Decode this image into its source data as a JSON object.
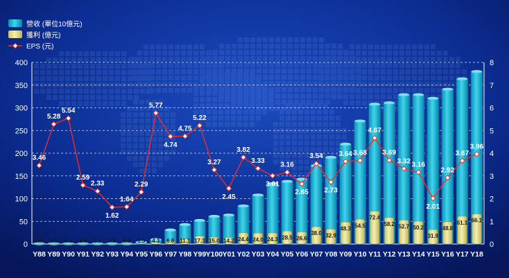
{
  "legend": {
    "revenue": "營收 (單位10億元)",
    "profit": "獲利 (億元)",
    "eps": "EPS (元)"
  },
  "colors": {
    "background": "#0b2a8c",
    "revenue": "#1fb8d6",
    "profit": "#e6df8c",
    "eps_line": "#e8302a"
  },
  "chart_data": {
    "type": "bar",
    "categories": [
      "Y88",
      "Y89",
      "Y90",
      "Y91",
      "Y92",
      "Y93",
      "Y94",
      "Y95",
      "Y96",
      "Y97",
      "Y98",
      "Y99",
      "Y100",
      "Y01",
      "Y02",
      "Y03",
      "Y04",
      "Y05",
      "Y06",
      "Y07",
      "Y08",
      "Y09",
      "Y10",
      "Y11",
      "Y12",
      "Y13",
      "Y14",
      "Y15",
      "Y16",
      "Y17",
      "Y18"
    ],
    "series": [
      {
        "name": "營收 (單位10億元)",
        "type": "bar",
        "axis": "left",
        "values": [
          3,
          3,
          3,
          3,
          3,
          3,
          3,
          6,
          12,
          33,
          45,
          54,
          63,
          66,
          86,
          110,
          135,
          140,
          145,
          175,
          193,
          222,
          273,
          310,
          313,
          331,
          331,
          323,
          343,
          366,
          382
        ]
      },
      {
        "name": "獲利 (億元)",
        "type": "bar",
        "axis": "left",
        "values": [
          0.7,
          1.1,
          1.1,
          1.0,
          1.1,
          0.8,
          0.8,
          1.3,
          4.3,
          6.8,
          11.1,
          17.3,
          15.0,
          14.2,
          24.4,
          24.0,
          24.3,
          28.5,
          26.6,
          38.0,
          32.9,
          48.3,
          54.5,
          72.4,
          58.2,
          52.7,
          50.2,
          31.9,
          48.8,
          61.1,
          66.1
        ]
      },
      {
        "name": "EPS (元)",
        "type": "line",
        "axis": "right",
        "values": [
          3.46,
          5.28,
          5.54,
          2.59,
          2.33,
          1.62,
          1.64,
          2.29,
          5.77,
          4.74,
          4.75,
          5.22,
          3.27,
          2.45,
          3.82,
          3.33,
          3.01,
          3.16,
          2.65,
          3.54,
          2.73,
          3.64,
          3.68,
          4.67,
          3.69,
          3.32,
          3.16,
          2.01,
          2.92,
          3.67,
          3.96
        ]
      }
    ],
    "title": "",
    "xlabel": "",
    "ylabel": "",
    "ylim": [
      0,
      400
    ],
    "y2lim": [
      0,
      8
    ],
    "yticks": [
      0,
      50,
      100,
      150,
      200,
      250,
      300,
      350,
      400
    ],
    "y2ticks": [
      0,
      1,
      2,
      3,
      4,
      5,
      6,
      7,
      8
    ],
    "grid": true,
    "legend_position": "top-left"
  }
}
